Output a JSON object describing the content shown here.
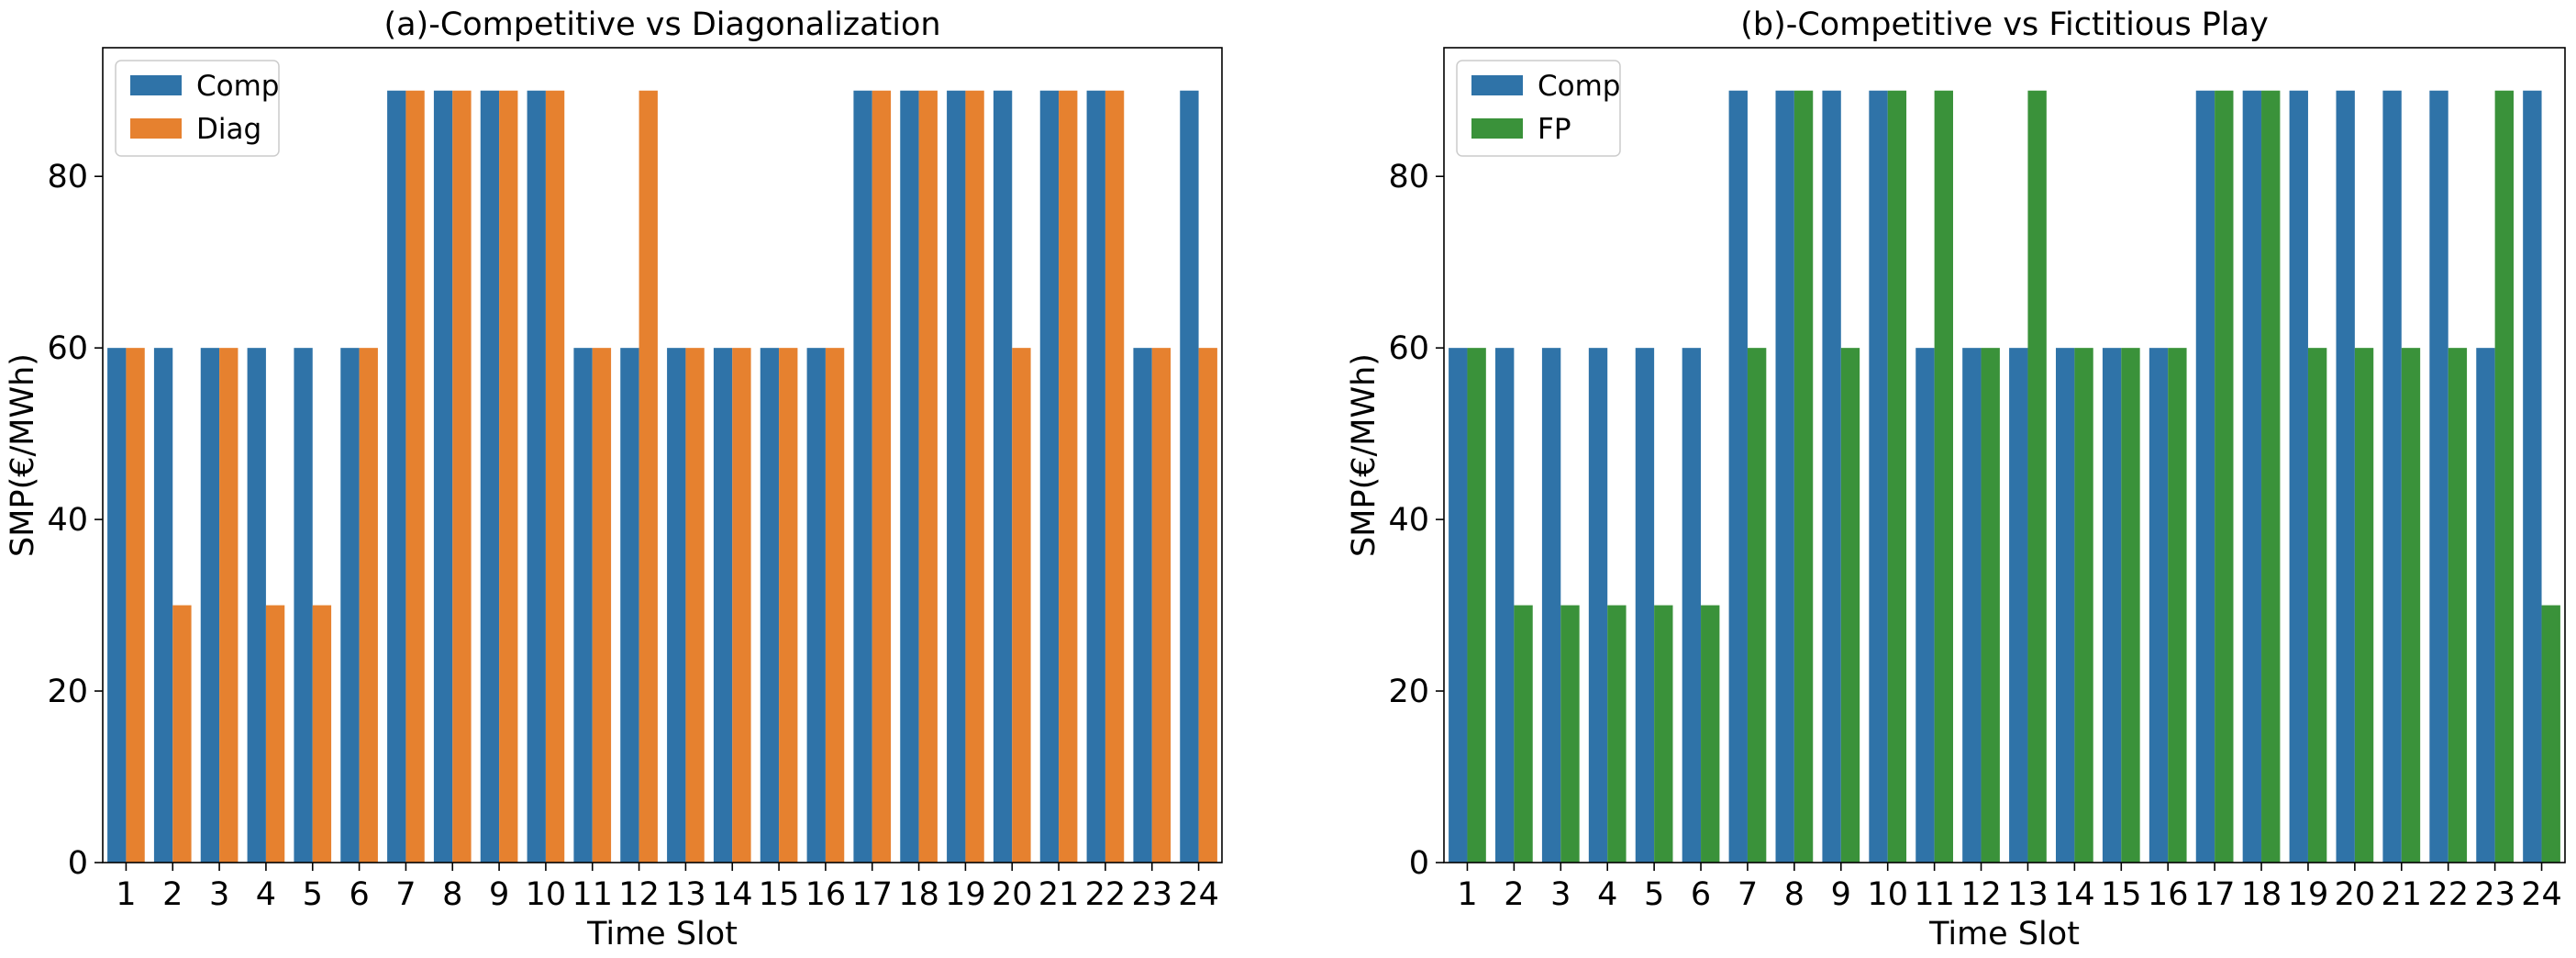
{
  "chart_data": [
    {
      "type": "bar",
      "title": "(a)-Competitive vs Diagonalization",
      "xlabel": "Time Slot",
      "ylabel": "SMP(€/MWh)",
      "ylim": [
        0,
        95
      ],
      "yticks": [
        "0",
        "20",
        "40",
        "60",
        "80"
      ],
      "grid": false,
      "legend_position": "top-left",
      "categories": [
        "1",
        "2",
        "3",
        "4",
        "5",
        "6",
        "7",
        "8",
        "9",
        "10",
        "11",
        "12",
        "13",
        "14",
        "15",
        "16",
        "17",
        "18",
        "19",
        "20",
        "21",
        "22",
        "23",
        "24"
      ],
      "series": [
        {
          "name": "Comp",
          "color": "#2f73a8",
          "values": [
            60,
            60,
            60,
            60,
            60,
            60,
            90,
            90,
            90,
            90,
            60,
            60,
            60,
            60,
            60,
            60,
            90,
            90,
            90,
            90,
            90,
            90,
            60,
            90
          ]
        },
        {
          "name": "Diag",
          "color": "#e6812f",
          "values": [
            60,
            30,
            60,
            30,
            30,
            60,
            90,
            90,
            90,
            90,
            60,
            90,
            60,
            60,
            60,
            60,
            90,
            90,
            90,
            60,
            90,
            90,
            60,
            60
          ]
        }
      ]
    },
    {
      "type": "bar",
      "title": "(b)-Competitive vs Fictitious Play",
      "xlabel": "Time Slot",
      "ylabel": "SMP(€/MWh)",
      "ylim": [
        0,
        95
      ],
      "yticks": [
        "0",
        "20",
        "40",
        "60",
        "80"
      ],
      "grid": false,
      "legend_position": "top-left",
      "categories": [
        "1",
        "2",
        "3",
        "4",
        "5",
        "6",
        "7",
        "8",
        "9",
        "10",
        "11",
        "12",
        "13",
        "14",
        "15",
        "16",
        "17",
        "18",
        "19",
        "20",
        "21",
        "22",
        "23",
        "24"
      ],
      "series": [
        {
          "name": "Comp",
          "color": "#2f73a8",
          "values": [
            60,
            60,
            60,
            60,
            60,
            60,
            90,
            90,
            90,
            90,
            60,
            60,
            60,
            60,
            60,
            60,
            90,
            90,
            90,
            90,
            90,
            90,
            60,
            90
          ]
        },
        {
          "name": "FP",
          "color": "#3a923a",
          "values": [
            60,
            30,
            30,
            30,
            30,
            30,
            60,
            90,
            60,
            90,
            90,
            60,
            90,
            60,
            60,
            60,
            90,
            90,
            60,
            60,
            60,
            60,
            90,
            30
          ]
        }
      ]
    }
  ]
}
